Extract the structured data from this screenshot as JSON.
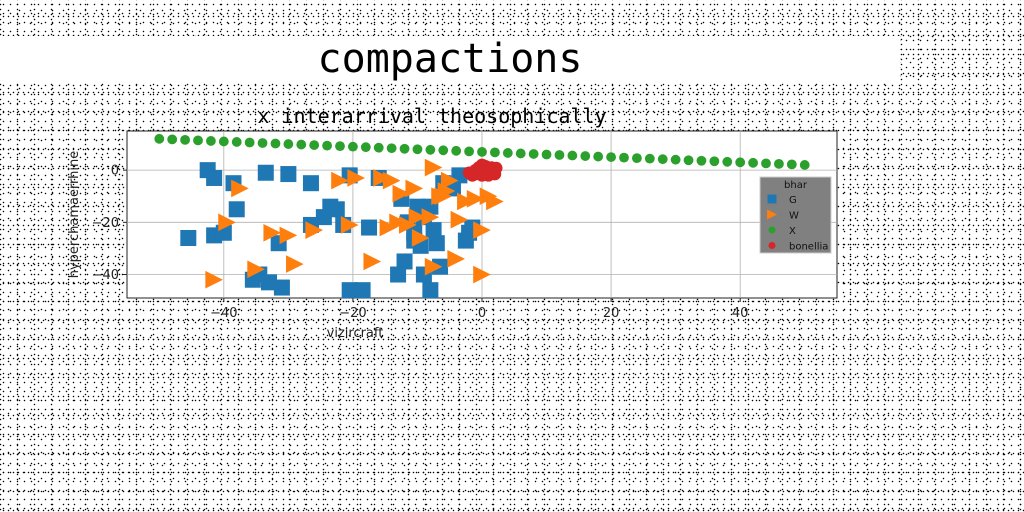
{
  "figure": {
    "suptitle": "compactions"
  },
  "chart_data": {
    "type": "scatter",
    "title": "x interarrival theosophically",
    "xlabel": "vizircraft",
    "ylabel": "hyperchamaerrhine",
    "xlim": [
      -55,
      55
    ],
    "ylim": [
      -49,
      15
    ],
    "xticks": [
      -40,
      -20,
      0,
      20,
      40
    ],
    "yticks": [
      0,
      -20,
      -40
    ],
    "grid": true,
    "legend": {
      "title": "bhar",
      "placement": "right",
      "background": "#808080"
    },
    "series": [
      {
        "name": "G",
        "marker": "square",
        "color": "#1f77b4",
        "points": [
          [
            -42.5,
            0
          ],
          [
            -41.5,
            -3
          ],
          [
            -38.5,
            -5
          ],
          [
            -38,
            -15
          ],
          [
            -45.5,
            -26
          ],
          [
            -41.5,
            -25
          ],
          [
            -40,
            -24
          ],
          [
            -33.5,
            -1
          ],
          [
            -30,
            -1.5
          ],
          [
            -26.5,
            -5
          ],
          [
            -34.5,
            -40
          ],
          [
            -35.5,
            -42
          ],
          [
            -33,
            -43
          ],
          [
            -31,
            -45
          ],
          [
            -31.5,
            -28
          ],
          [
            -26.5,
            -21
          ],
          [
            -24.5,
            -18
          ],
          [
            -22.5,
            -15
          ],
          [
            -21.5,
            -21
          ],
          [
            -23.5,
            -14
          ],
          [
            -20.5,
            -46
          ],
          [
            -18.5,
            -46
          ],
          [
            -17.5,
            -22
          ],
          [
            -20.5,
            -2
          ],
          [
            -16,
            -3
          ],
          [
            -12.5,
            -11
          ],
          [
            -11.5,
            -20
          ],
          [
            -10,
            -14
          ],
          [
            -9,
            -18
          ],
          [
            -8,
            -14
          ],
          [
            -10.5,
            -27
          ],
          [
            -9.5,
            -29
          ],
          [
            -7,
            -28
          ],
          [
            -9,
            -40
          ],
          [
            -8,
            -46
          ],
          [
            -12,
            -35
          ],
          [
            -10.5,
            -24
          ],
          [
            -7.5,
            -23
          ],
          [
            -6,
            -5
          ],
          [
            -4.5,
            -7
          ],
          [
            -3.5,
            -2
          ],
          [
            -2.5,
            -27
          ],
          [
            -2,
            -24
          ],
          [
            -1.5,
            -22
          ],
          [
            -13,
            -40
          ],
          [
            -6.5,
            -37
          ]
        ]
      },
      {
        "name": "W",
        "marker": "triangle-right",
        "color": "#ff7f0e",
        "points": [
          [
            -37.5,
            -7
          ],
          [
            -39.5,
            -20
          ],
          [
            -41.5,
            -42
          ],
          [
            -35,
            -38
          ],
          [
            -32.5,
            -24
          ],
          [
            -30,
            -25
          ],
          [
            -29,
            -36
          ],
          [
            -26,
            -23
          ],
          [
            -22,
            -4
          ],
          [
            -19.5,
            -3
          ],
          [
            -20.5,
            -21
          ],
          [
            -17,
            -35
          ],
          [
            -15.5,
            -3
          ],
          [
            -14,
            -4
          ],
          [
            -12.5,
            -9
          ],
          [
            -10.5,
            -7
          ],
          [
            -11.5,
            -21
          ],
          [
            -10,
            -18
          ],
          [
            -9.5,
            -26
          ],
          [
            -7.5,
            -37
          ],
          [
            -8,
            -18
          ],
          [
            -6.5,
            -10
          ],
          [
            -6,
            -10
          ],
          [
            -5,
            -4
          ],
          [
            -7.5,
            1
          ],
          [
            -4,
            -34
          ],
          [
            -3.5,
            -19
          ],
          [
            -2.5,
            -12
          ],
          [
            -1,
            -11
          ],
          [
            0,
            -40
          ],
          [
            0,
            -23
          ],
          [
            1,
            -10
          ],
          [
            2,
            -12
          ],
          [
            -13,
            -20
          ],
          [
            -5.5,
            -8
          ],
          [
            -14.5,
            -22
          ]
        ]
      },
      {
        "name": "X",
        "marker": "circle",
        "color": "#2ca02c",
        "line_from": [
          -50,
          12
        ],
        "line_to": [
          50,
          2
        ],
        "count": 51
      },
      {
        "name": "bonellia",
        "marker": "circle",
        "color": "#d62728",
        "points": [
          [
            -1.5,
            -1
          ],
          [
            -1,
            0
          ],
          [
            -0.5,
            1
          ],
          [
            0,
            0.5
          ],
          [
            0.5,
            1.5
          ],
          [
            1,
            0
          ],
          [
            1.5,
            1
          ],
          [
            2,
            0
          ],
          [
            -1.5,
            -2
          ],
          [
            0,
            -2
          ],
          [
            1,
            -2
          ],
          [
            2,
            -1.5
          ],
          [
            -0.5,
            -1
          ],
          [
            0.5,
            -0.5
          ],
          [
            1.5,
            -1
          ],
          [
            2.2,
            0.8
          ],
          [
            -2,
            -1
          ],
          [
            0,
            2
          ],
          [
            1,
            1
          ],
          [
            -1,
            -1.5
          ]
        ]
      }
    ]
  }
}
